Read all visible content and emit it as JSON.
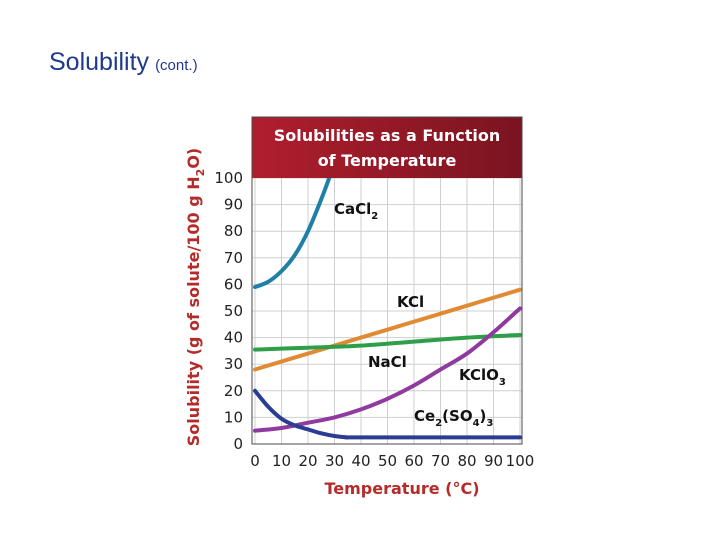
{
  "slide": {
    "title": "Solubility",
    "title_suffix": "(cont.)"
  },
  "chart_data": {
    "type": "line",
    "title_line1": "Solubilities as a Function",
    "title_line2": "of Temperature",
    "xlabel": "Temperature (°C)",
    "ylabel_main": "Solubility (g of solute/100 g H",
    "ylabel_sub": "2",
    "ylabel_end": "O)",
    "xlim": [
      0,
      100
    ],
    "ylim": [
      0,
      100
    ],
    "grid": true,
    "x_ticks": [
      "0",
      "10",
      "20",
      "30",
      "40",
      "50",
      "60",
      "70",
      "80",
      "90",
      "100"
    ],
    "y_ticks": [
      "0",
      "10",
      "20",
      "30",
      "40",
      "50",
      "60",
      "70",
      "80",
      "90",
      "100"
    ],
    "series": [
      {
        "name": "CaCl2",
        "label_parts": [
          "Ca",
          "Cl",
          "2"
        ],
        "color": "#1f7fa6",
        "x": [
          0,
          5,
          10,
          15,
          20,
          25,
          28
        ],
        "y": [
          59,
          61,
          65,
          71,
          80,
          92,
          100
        ]
      },
      {
        "name": "KCl",
        "label_parts": [
          "KCl"
        ],
        "color": "#e08a34",
        "x": [
          0,
          20,
          40,
          60,
          80,
          100
        ],
        "y": [
          28,
          34,
          40,
          46,
          52,
          58
        ]
      },
      {
        "name": "NaCl",
        "label_parts": [
          "NaCl"
        ],
        "color": "#2e9e48",
        "x": [
          0,
          20,
          40,
          60,
          80,
          100
        ],
        "y": [
          35.5,
          36.2,
          37,
          38.5,
          40,
          41
        ]
      },
      {
        "name": "KClO3",
        "label_parts": [
          "KClO",
          "3"
        ],
        "color": "#8e3a9e",
        "x": [
          0,
          10,
          20,
          30,
          40,
          50,
          60,
          70,
          80,
          90,
          100
        ],
        "y": [
          5,
          6,
          8,
          10,
          13,
          17,
          22,
          28,
          34,
          42,
          51
        ]
      },
      {
        "name": "Ce2(SO4)3",
        "label_parts": [
          "Ce",
          "2",
          "(SO",
          "4",
          ")",
          "3"
        ],
        "color": "#2a3d92",
        "x": [
          0,
          5,
          10,
          15,
          20,
          25,
          30,
          35,
          40,
          100
        ],
        "y": [
          20,
          14,
          9.5,
          7,
          5.5,
          4,
          3,
          2.5,
          2.5,
          2.5
        ]
      }
    ]
  },
  "colors": {
    "banner": "#b01e2e",
    "banner_dark": "#7a1420",
    "grid": "#cfcfcf",
    "plot_border": "#4a4a4a",
    "axis_title": "#b32c2a",
    "slide_title": "#1f3a8a"
  }
}
